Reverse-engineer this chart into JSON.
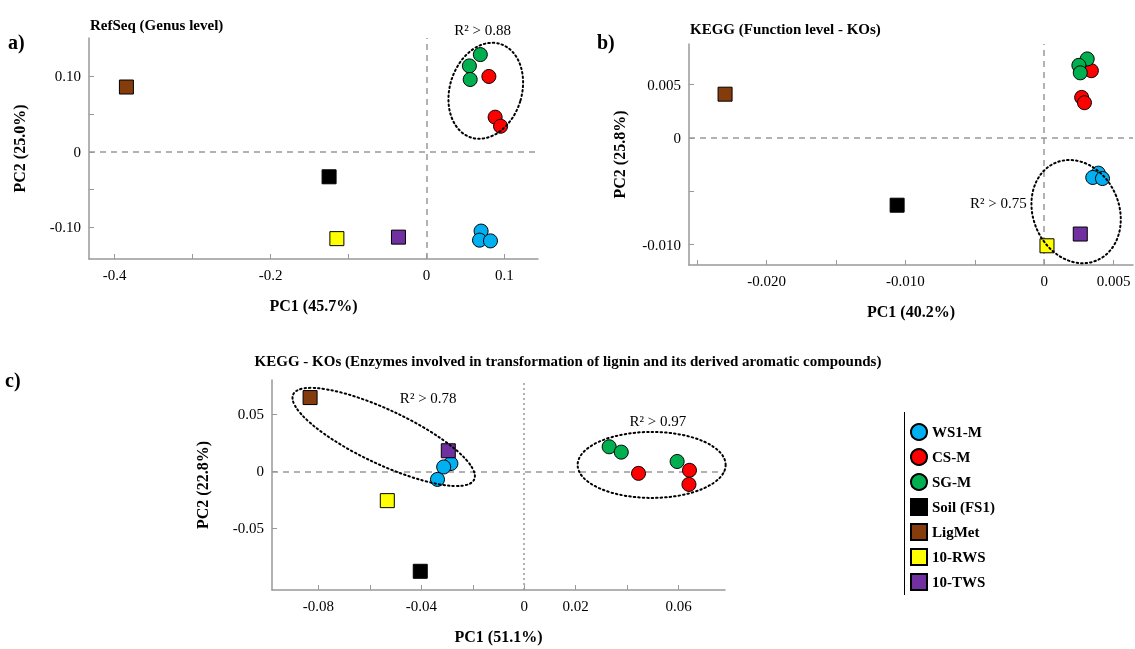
{
  "chart_data": [
    {
      "type": "scatter",
      "title": "RefSeq (Genus level)",
      "xlabel": "PC1 (45.7%)",
      "ylabel": "PC2 (25.0%)",
      "annotations": [
        "a)",
        "R² > 0.88"
      ],
      "xlim": [
        -0.433,
        0.143
      ],
      "ylim": [
        -0.142,
        0.151
      ],
      "xticks": [
        -0.4,
        {
          "value": -0.3,
          "label": null
        },
        -0.2,
        {
          "value": -0.1,
          "label": null
        },
        0,
        0.1
      ],
      "yticks": [
        {
          "value": -0.1,
          "label": "-0.10"
        },
        {
          "value": -0.05,
          "label": null
        },
        0,
        {
          "value": 0.05,
          "label": null
        },
        {
          "value": 0.1,
          "label": "0.10"
        }
      ],
      "grid": false,
      "legend": false,
      "ref_lines": [
        {
          "axis": "x",
          "value": 0,
          "color": "#999999",
          "line_style": "dashed"
        },
        {
          "axis": "y",
          "value": 0,
          "color": "#999999",
          "line_style": "dashed"
        }
      ],
      "series": [
        {
          "color": "#00b0f0",
          "marker": "circle",
          "x": [
            0.07,
            0.068,
            0.082
          ],
          "values": [
            -0.105,
            -0.117,
            -0.118
          ]
        },
        {
          "color": "#ff0000",
          "marker": "circle",
          "x": [
            0.08,
            0.088,
            0.095
          ],
          "values": [
            0.1,
            0.046,
            0.034
          ]
        },
        {
          "color": "#00b050",
          "marker": "circle",
          "x": [
            0.069,
            0.055,
            0.056
          ],
          "values": [
            0.129,
            0.114,
            0.096
          ]
        },
        {
          "color": "#000000",
          "marker": "square",
          "x": [
            -0.125
          ],
          "values": [
            -0.033
          ]
        },
        {
          "color": "#843c0c",
          "marker": "square",
          "x": [
            -0.385
          ],
          "values": [
            0.086
          ]
        },
        {
          "color": "#ffff00",
          "marker": "square",
          "x": [
            -0.115
          ],
          "values": [
            -0.115
          ]
        },
        {
          "color": "#7030a0",
          "marker": "square",
          "x": [
            -0.036
          ],
          "values": [
            -0.113
          ]
        }
      ]
    },
    {
      "type": "scatter",
      "title": "KEGG (Function level - KOs)",
      "xlabel": "PC1 (40.2%)",
      "ylabel": "PC2 (25.8%)",
      "annotations": [
        "b)",
        "R² > 0.75"
      ],
      "xlim": [
        -0.0256,
        0.0064
      ],
      "ylim": [
        -0.0119,
        0.0088
      ],
      "xticks": [
        {
          "value": -0.025,
          "label": null
        },
        {
          "value": -0.02,
          "label": "-0.020"
        },
        {
          "value": -0.015,
          "label": null
        },
        {
          "value": -0.01,
          "label": "-0.010"
        },
        {
          "value": -0.005,
          "label": null
        },
        0,
        0.005
      ],
      "yticks": [
        {
          "value": -0.01,
          "label": "-0.010"
        },
        {
          "value": -0.005,
          "label": null
        },
        0,
        0.005
      ],
      "grid": false,
      "legend": false,
      "ref_lines": [
        {
          "axis": "x",
          "value": 0,
          "color": "#999999",
          "line_style": "dashed"
        },
        {
          "axis": "y",
          "value": 0,
          "color": "#999999",
          "line_style": "dashed"
        }
      ],
      "series": [
        {
          "color": "#00b0f0",
          "marker": "circle",
          "x": [
            0.0039,
            0.0035,
            0.0042
          ],
          "values": [
            -0.0033,
            -0.0037,
            -0.0038
          ]
        },
        {
          "color": "#ff0000",
          "marker": "circle",
          "x": [
            0.0034,
            0.0027,
            0.0029
          ],
          "values": [
            0.0063,
            0.0038,
            0.0033
          ]
        },
        {
          "color": "#00b050",
          "marker": "circle",
          "x": [
            0.0031,
            0.0025,
            0.0026
          ],
          "values": [
            0.0074,
            0.0068,
            0.0061
          ]
        },
        {
          "color": "#000000",
          "marker": "square",
          "x": [
            -0.0106
          ],
          "values": [
            -0.0063
          ]
        },
        {
          "color": "#843c0c",
          "marker": "square",
          "x": [
            -0.023
          ],
          "values": [
            0.0041
          ]
        },
        {
          "color": "#ffff00",
          "marker": "square",
          "x": [
            0.0002
          ],
          "values": [
            -0.0101
          ]
        },
        {
          "color": "#7030a0",
          "marker": "square",
          "x": [
            0.0026
          ],
          "values": [
            -0.009
          ]
        }
      ]
    },
    {
      "type": "scatter",
      "title": "KEGG - KOs (Enzymes involved in transformation of lignin and its derived aromatic compounds)",
      "xlabel": "PC1 (51.1%)",
      "ylabel": "PC2 (22.8%)",
      "annotations": [
        "c)",
        "R² > 0.78",
        "R² > 0.97"
      ],
      "xlim": [
        -0.098,
        0.078
      ],
      "ylim": [
        -0.104,
        0.08
      ],
      "xticks": [
        -0.08,
        {
          "value": -0.06,
          "label": null
        },
        -0.04,
        {
          "value": -0.02,
          "label": null
        },
        0,
        0.02,
        {
          "value": 0.04,
          "label": null
        },
        0.06
      ],
      "yticks": [
        -0.05,
        0,
        0.05
      ],
      "grid": false,
      "legend": "right",
      "ref_lines": [
        {
          "axis": "x",
          "value": 0,
          "color": "#999999",
          "line_style": "dotted"
        },
        {
          "axis": "y",
          "value": 0,
          "color": "#999999",
          "line_style": "dashed"
        }
      ],
      "series": [
        {
          "name": "WS1-M",
          "color": "#00b0f0",
          "marker": "circle",
          "x": [
            -0.0285,
            -0.0313,
            -0.0337
          ],
          "values": [
            0.0068,
            0.0038,
            -0.0071
          ]
        },
        {
          "name": "CS-M",
          "color": "#ff0000",
          "marker": "circle",
          "x": [
            0.0444,
            0.0642,
            0.064
          ],
          "values": [
            -0.0018,
            0.0009,
            -0.0115
          ]
        },
        {
          "name": "SG-M",
          "color": "#00b050",
          "marker": "circle",
          "x": [
            0.033,
            0.0377,
            0.0594
          ],
          "values": [
            0.0215,
            0.0168,
            0.0086
          ]
        },
        {
          "name": "Soil (FS1)",
          "color": "#000000",
          "marker": "square",
          "x": [
            -0.0404
          ],
          "values": [
            -0.0876
          ]
        },
        {
          "name": "LigMet",
          "color": "#843c0c",
          "marker": "square",
          "x": [
            -0.0832
          ],
          "values": [
            0.0646
          ]
        },
        {
          "name": "10-RWS",
          "color": "#ffff00",
          "marker": "square",
          "x": [
            -0.0532
          ],
          "values": [
            -0.0257
          ]
        },
        {
          "name": "10-TWS",
          "color": "#7030a0",
          "marker": "square",
          "x": [
            -0.0295
          ],
          "values": [
            0.018
          ]
        }
      ]
    }
  ]
}
